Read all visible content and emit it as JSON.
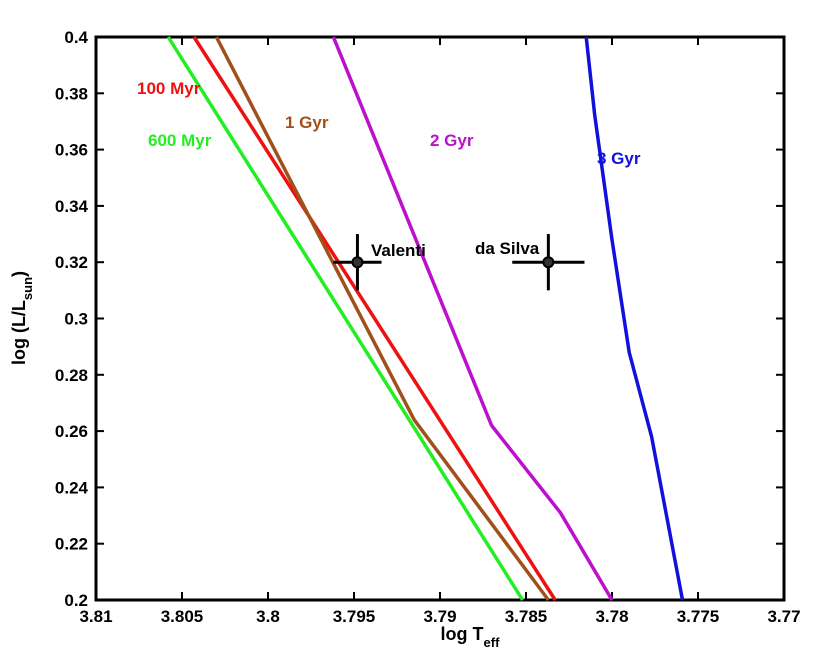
{
  "chart_data": {
    "type": "line",
    "title": "",
    "xlabel": {
      "main": "log T",
      "sub": "eff"
    },
    "ylabel": {
      "main": "log (L/L",
      "sub": "sun",
      "close": ")"
    },
    "xlim": [
      3.81,
      3.77
    ],
    "ylim": [
      0.2,
      0.4
    ],
    "x_reversed": true,
    "xticks": [
      3.81,
      3.805,
      3.8,
      3.795,
      3.79,
      3.785,
      3.78,
      3.775,
      3.77
    ],
    "xtick_labels": [
      "3.81",
      "3.805",
      "3.8",
      "3.795",
      "3.79",
      "3.785",
      "3.78",
      "3.775",
      "3.77"
    ],
    "yticks": [
      0.2,
      0.22,
      0.24,
      0.26,
      0.28,
      0.3,
      0.32,
      0.34,
      0.36,
      0.38,
      0.4
    ],
    "ytick_labels": [
      "0.2",
      "0.22",
      "0.24",
      "0.26",
      "0.28",
      "0.3",
      "0.32",
      "0.34",
      "0.36",
      "0.38",
      "0.4"
    ],
    "series": [
      {
        "name": "100 Myr",
        "color": "#ee1111",
        "label": "100 Myr",
        "x": [
          3.8043,
          3.7833
        ],
        "y": [
          0.4,
          0.2
        ]
      },
      {
        "name": "600 Myr",
        "color": "#22ee22",
        "label": "600 Myr",
        "x": [
          3.8058,
          3.7852
        ],
        "y": [
          0.4,
          0.2
        ]
      },
      {
        "name": "1 Gyr",
        "color": "#a0501a",
        "label": "1 Gyr",
        "x": [
          3.803,
          3.7915,
          3.7837
        ],
        "y": [
          0.4,
          0.264,
          0.2
        ]
      },
      {
        "name": "2 Gyr",
        "color": "#bb11cc",
        "label": "2 Gyr",
        "x": [
          3.7962,
          3.787,
          3.783,
          3.78
        ],
        "y": [
          0.4,
          0.262,
          0.231,
          0.2
        ]
      },
      {
        "name": "3 Gyr",
        "color": "#1111dd",
        "label": "3 Gyr",
        "x": [
          3.7815,
          3.781,
          3.78,
          3.779,
          3.7777,
          3.7759
        ],
        "y": [
          0.4,
          0.372,
          0.328,
          0.288,
          0.258,
          0.2
        ]
      }
    ],
    "points": [
      {
        "name": "Valenti",
        "label": "Valenti",
        "x": 3.7948,
        "y": 0.32,
        "xerr": 0.0014,
        "yerr": 0.01
      },
      {
        "name": "da Silva",
        "label": "da Silva",
        "x": 3.7837,
        "y": 0.32,
        "xerr": 0.0021,
        "yerr": 0.01
      }
    ],
    "grid": false
  }
}
